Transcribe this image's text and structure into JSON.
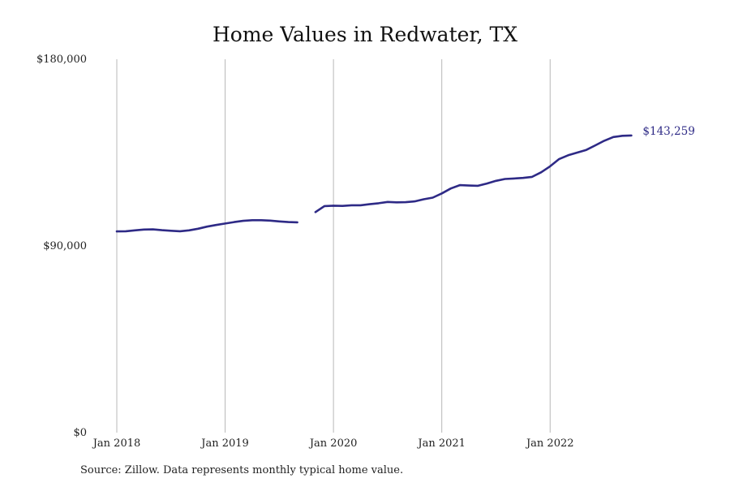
{
  "chart_data": {
    "type": "line",
    "title": "Home Values in Redwater, TX",
    "xlabel": "",
    "ylabel": "",
    "ylim": [
      0,
      180000
    ],
    "y_ticks": [
      {
        "value": 0,
        "label": "$0"
      },
      {
        "value": 90000,
        "label": "$90,000"
      },
      {
        "value": 180000,
        "label": "$180,000"
      }
    ],
    "x_ticks": [
      {
        "date": "2018-01",
        "label": "Jan 2018"
      },
      {
        "date": "2019-01",
        "label": "Jan 2019"
      },
      {
        "date": "2020-01",
        "label": "Jan 2020"
      },
      {
        "date": "2021-01",
        "label": "Jan 2021"
      },
      {
        "date": "2022-01",
        "label": "Jan 2022"
      }
    ],
    "vertical_grid": true,
    "horizontal_grid": false,
    "line_color": "#2e2a86",
    "last_value_label": "$143,259",
    "series": [
      {
        "segments": [
          [
            {
              "date": "2018-01",
              "value": 97000
            },
            {
              "date": "2018-02",
              "value": 97100
            },
            {
              "date": "2018-03",
              "value": 97500
            },
            {
              "date": "2018-04",
              "value": 97900
            },
            {
              "date": "2018-05",
              "value": 98000
            },
            {
              "date": "2018-06",
              "value": 97600
            },
            {
              "date": "2018-07",
              "value": 97300
            },
            {
              "date": "2018-08",
              "value": 97100
            },
            {
              "date": "2018-09",
              "value": 97500
            },
            {
              "date": "2018-10",
              "value": 98300
            },
            {
              "date": "2018-11",
              "value": 99300
            },
            {
              "date": "2018-12",
              "value": 100100
            },
            {
              "date": "2019-01",
              "value": 100800
            },
            {
              "date": "2019-02",
              "value": 101500
            },
            {
              "date": "2019-03",
              "value": 102100
            },
            {
              "date": "2019-04",
              "value": 102400
            },
            {
              "date": "2019-05",
              "value": 102400
            },
            {
              "date": "2019-06",
              "value": 102200
            },
            {
              "date": "2019-07",
              "value": 101800
            },
            {
              "date": "2019-08",
              "value": 101500
            },
            {
              "date": "2019-09",
              "value": 101400
            }
          ],
          [
            {
              "date": "2019-11",
              "value": 106300
            },
            {
              "date": "2019-12",
              "value": 109200
            },
            {
              "date": "2020-01",
              "value": 109400
            },
            {
              "date": "2020-02",
              "value": 109300
            },
            {
              "date": "2020-03",
              "value": 109600
            },
            {
              "date": "2020-04",
              "value": 109600
            },
            {
              "date": "2020-05",
              "value": 110100
            },
            {
              "date": "2020-06",
              "value": 110600
            },
            {
              "date": "2020-07",
              "value": 111200
            },
            {
              "date": "2020-08",
              "value": 111000
            },
            {
              "date": "2020-09",
              "value": 111100
            },
            {
              "date": "2020-10",
              "value": 111500
            },
            {
              "date": "2020-11",
              "value": 112500
            },
            {
              "date": "2020-12",
              "value": 113300
            },
            {
              "date": "2021-01",
              "value": 115300
            },
            {
              "date": "2021-02",
              "value": 117700
            },
            {
              "date": "2021-03",
              "value": 119300
            },
            {
              "date": "2021-04",
              "value": 119100
            },
            {
              "date": "2021-05",
              "value": 119000
            },
            {
              "date": "2021-06",
              "value": 120100
            },
            {
              "date": "2021-07",
              "value": 121400
            },
            {
              "date": "2021-08",
              "value": 122300
            },
            {
              "date": "2021-09",
              "value": 122500
            },
            {
              "date": "2021-10",
              "value": 122800
            },
            {
              "date": "2021-11",
              "value": 123300
            },
            {
              "date": "2021-12",
              "value": 125500
            },
            {
              "date": "2022-01",
              "value": 128400
            },
            {
              "date": "2022-02",
              "value": 131900
            },
            {
              "date": "2022-03",
              "value": 133700
            },
            {
              "date": "2022-04",
              "value": 135000
            },
            {
              "date": "2022-05",
              "value": 136300
            },
            {
              "date": "2022-06",
              "value": 138500
            },
            {
              "date": "2022-07",
              "value": 140700
            },
            {
              "date": "2022-08",
              "value": 142500
            },
            {
              "date": "2022-09",
              "value": 143100
            },
            {
              "date": "2022-10",
              "value": 143259
            }
          ]
        ]
      }
    ]
  },
  "footer": {
    "source": "Source: Zillow. Data represents monthly typical home value."
  }
}
